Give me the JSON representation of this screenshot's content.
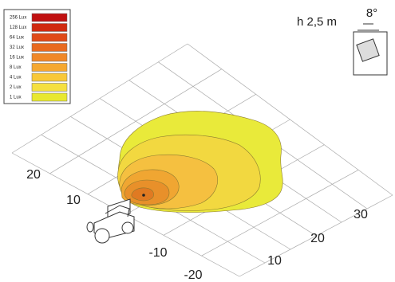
{
  "legend": {
    "items": [
      "256 Lux",
      "128 Lux",
      "64 Lux",
      "32 Lux",
      "16 Lux",
      "8 Lux",
      "4 Lux",
      "2 Lux",
      "1 Lux"
    ]
  },
  "mounting": {
    "height": "h 2,5 m",
    "angle": "8°"
  },
  "axes": {
    "left": [
      "20",
      "10",
      "-10",
      "-20"
    ],
    "right": [
      "10",
      "20",
      "30"
    ]
  }
}
